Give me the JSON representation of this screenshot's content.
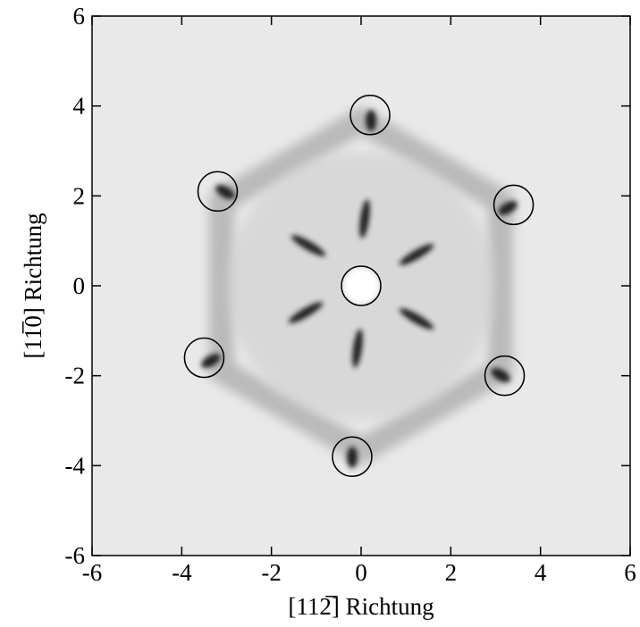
{
  "chart_data": {
    "type": "scatter",
    "xlabel": "[112̅] Richtung",
    "ylabel": "[11̅0] Richtung",
    "x": [
      0.2,
      -3.2,
      3.4,
      0,
      -3.5,
      3.2,
      -0.2
    ],
    "y": [
      3.8,
      2.1,
      1.8,
      0,
      -1.6,
      -2.0,
      -3.8
    ],
    "color": "#000000",
    "xlim": [
      -6,
      6
    ],
    "ylim": [
      -6,
      6
    ],
    "xticks": [
      -6,
      -4,
      -2,
      0,
      2,
      4,
      6
    ],
    "yticks": [
      -6,
      -4,
      -2,
      0,
      2,
      4,
      6
    ]
  }
}
